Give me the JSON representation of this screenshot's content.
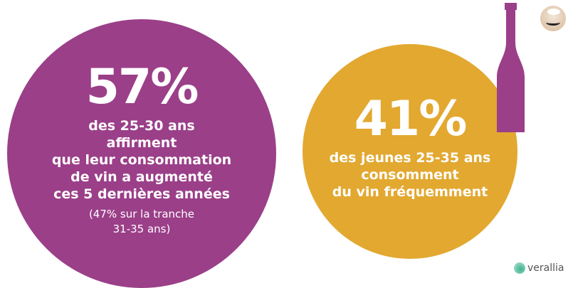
{
  "stat1": {
    "value": "57%",
    "text": "des 25-30 ans\naffirment\nque leur consommation\nde vin a augmenté\nces 5 dernières années",
    "note": "(47% sur la tranche\n31-35 ans)",
    "color": "#9b3f89"
  },
  "stat2": {
    "value": "41%",
    "text": "des jeunes 25-35 ans\nconsomment\ndu vin fréquemment",
    "color": "#e2a830"
  },
  "brand": {
    "logo_text": "verallia"
  }
}
